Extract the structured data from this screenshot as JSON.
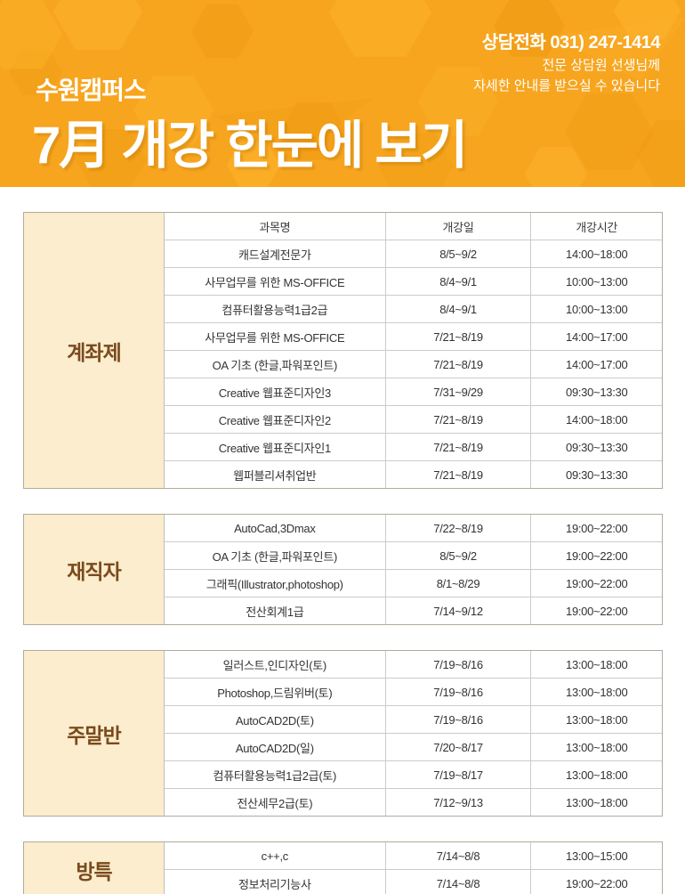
{
  "header": {
    "phone": "상담전화 031) 247-1414",
    "subtext_line1": "전문 상담원 선생님께",
    "subtext_line2": "자세한 안내를 받으실 수 있습니다",
    "campus": "수원캠퍼스",
    "title": "7月 개강 한눈에 보기"
  },
  "colors": {
    "header_bg": "#F7A51F",
    "hex_light": "#FFB62E",
    "hex_dark": "#EE9A10",
    "label_bg": "#FBEDCD",
    "label_text": "#7A4A1E",
    "border_outer": "#B3AA9B",
    "border_inner": "#CBCBCB",
    "cell_text": "#333333",
    "header_text": "#FFFFFF"
  },
  "table": {
    "columns": [
      "과목명",
      "개강일",
      "개강시간"
    ]
  },
  "sections": [
    {
      "label": "계좌제",
      "rows": [
        [
          "캐드설계전문가",
          "8/5~9/2",
          "14:00~18:00"
        ],
        [
          "사무업무를 위한 MS-OFFICE",
          "8/4~9/1",
          "10:00~13:00"
        ],
        [
          "컴퓨터활용능력1급2급",
          "8/4~9/1",
          "10:00~13:00"
        ],
        [
          "사무업무를 위한 MS-OFFICE",
          "7/21~8/19",
          "14:00~17:00"
        ],
        [
          "OA 기초 (한글,파워포인트)",
          "7/21~8/19",
          "14:00~17:00"
        ],
        [
          "Creative 웹표준디자인3",
          "7/31~9/29",
          "09:30~13:30"
        ],
        [
          "Creative 웹표준디자인2",
          "7/21~8/19",
          "14:00~18:00"
        ],
        [
          "Creative 웹표준디자인1",
          "7/21~8/19",
          "09:30~13:30"
        ],
        [
          "웹퍼블리셔취업반",
          "7/21~8/19",
          "09:30~13:30"
        ]
      ]
    },
    {
      "label": "재직자",
      "rows": [
        [
          "AutoCad,3Dmax",
          "7/22~8/19",
          "19:00~22:00"
        ],
        [
          "OA 기초 (한글,파워포인트)",
          "8/5~9/2",
          "19:00~22:00"
        ],
        [
          "그래픽(Illustrator,photoshop)",
          "8/1~8/29",
          "19:00~22:00"
        ],
        [
          "전산회계1급",
          "7/14~9/12",
          "19:00~22:00"
        ]
      ]
    },
    {
      "label": "주말반",
      "rows": [
        [
          "일러스트,인디자인(토)",
          "7/19~8/16",
          "13:00~18:00"
        ],
        [
          "Photoshop,드림위버(토)",
          "7/19~8/16",
          "13:00~18:00"
        ],
        [
          "AutoCAD2D(토)",
          "7/19~8/16",
          "13:00~18:00"
        ],
        [
          "AutoCAD2D(일)",
          "7/20~8/17",
          "13:00~18:00"
        ],
        [
          "컴퓨터활용능력1급2급(토)",
          "7/19~8/17",
          "13:00~18:00"
        ],
        [
          "전산세무2급(토)",
          "7/12~9/13",
          "13:00~18:00"
        ]
      ]
    },
    {
      "label": "방특",
      "rows": [
        [
          "c++,c",
          "7/14~8/8",
          "13:00~15:00"
        ],
        [
          "정보처리기능사",
          "7/14~8/8",
          "19:00~22:00"
        ]
      ]
    }
  ]
}
